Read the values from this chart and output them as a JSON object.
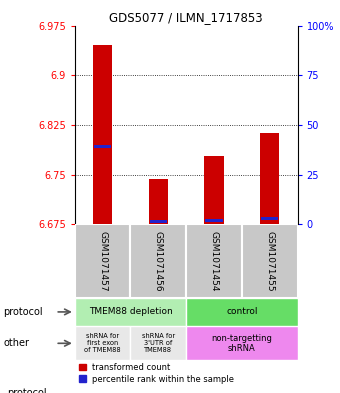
{
  "title": "GDS5077 / ILMN_1717853",
  "samples": [
    "GSM1071457",
    "GSM1071456",
    "GSM1071454",
    "GSM1071455"
  ],
  "red_values": [
    6.945,
    6.743,
    6.778,
    6.813
  ],
  "blue_values": [
    6.792,
    6.679,
    6.681,
    6.684
  ],
  "red_base": 6.675,
  "ylim": [
    6.675,
    6.975
  ],
  "yticks": [
    6.675,
    6.75,
    6.825,
    6.9,
    6.975
  ],
  "ytick_labels": [
    "6.675",
    "6.75",
    "6.825",
    "6.9",
    "6.975"
  ],
  "right_yticks_pct": [
    0,
    25,
    50,
    75,
    100
  ],
  "right_ytick_labels": [
    "0",
    "25",
    "50",
    "75",
    "100%"
  ],
  "protocol_label1": "TMEM88 depletion",
  "protocol_label2": "control",
  "protocol_color1": "#b2eeb2",
  "protocol_color2": "#66dd66",
  "other_label1": "shRNA for\nfirst exon\nof TMEM88",
  "other_label2": "shRNA for\n3'UTR of\nTMEM88",
  "other_label3": "non-targetting\nshRNA",
  "other_color12": "#e8e8e8",
  "other_color3": "#ee88ee",
  "sample_box_color": "#c8c8c8",
  "bar_color_red": "#cc0000",
  "bar_color_blue": "#2222cc",
  "bar_width": 0.35,
  "legend_red": "transformed count",
  "legend_blue": "percentile rank within the sample",
  "side_label_protocol": "protocol",
  "side_label_other": "other"
}
